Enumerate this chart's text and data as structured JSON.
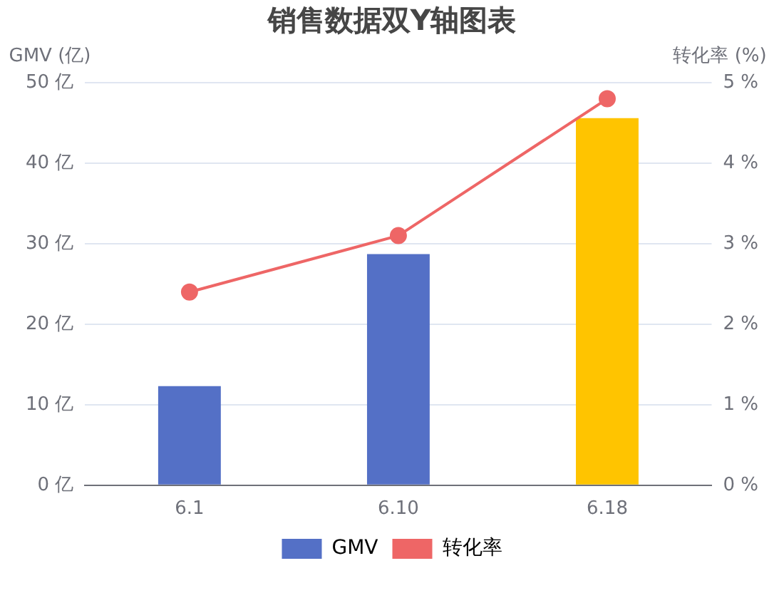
{
  "chart_data": {
    "type": "bar",
    "title": "销售数据双Y轴图表",
    "ylabel": "GMV (亿)",
    "y2label": "转化率 (%)",
    "categories": [
      "6.1",
      "6.10",
      "6.18"
    ],
    "series": [
      {
        "name": "GMV",
        "colors": [
          "#5470c6",
          "#5470c6",
          "#ffc400"
        ],
        "color": "#5470c6",
        "values": [
          12.3,
          28.7,
          45.6
        ]
      },
      {
        "name": "转化率",
        "type": "line",
        "axis": "y2",
        "color": "#ee6666",
        "values": [
          2.4,
          3.1,
          4.8
        ]
      }
    ],
    "ylim": [
      0,
      50
    ],
    "yticks": [
      {
        "value": 0,
        "label": "0 亿"
      },
      {
        "value": 10,
        "label": "10 亿"
      },
      {
        "value": 20,
        "label": "20 亿"
      },
      {
        "value": 30,
        "label": "30 亿"
      },
      {
        "value": 40,
        "label": "40 亿"
      },
      {
        "value": 50,
        "label": "50 亿"
      }
    ],
    "y2lim": [
      0,
      5
    ],
    "y2ticks": [
      {
        "value": 0,
        "label": "0 %"
      },
      {
        "value": 1,
        "label": "1 %"
      },
      {
        "value": 2,
        "label": "2 %"
      },
      {
        "value": 3,
        "label": "3 %"
      },
      {
        "value": 4,
        "label": "4 %"
      },
      {
        "value": 5,
        "label": "5 %"
      }
    ],
    "grid": "y",
    "legend": "bottom",
    "marker": "circle",
    "line_style": "solid"
  }
}
